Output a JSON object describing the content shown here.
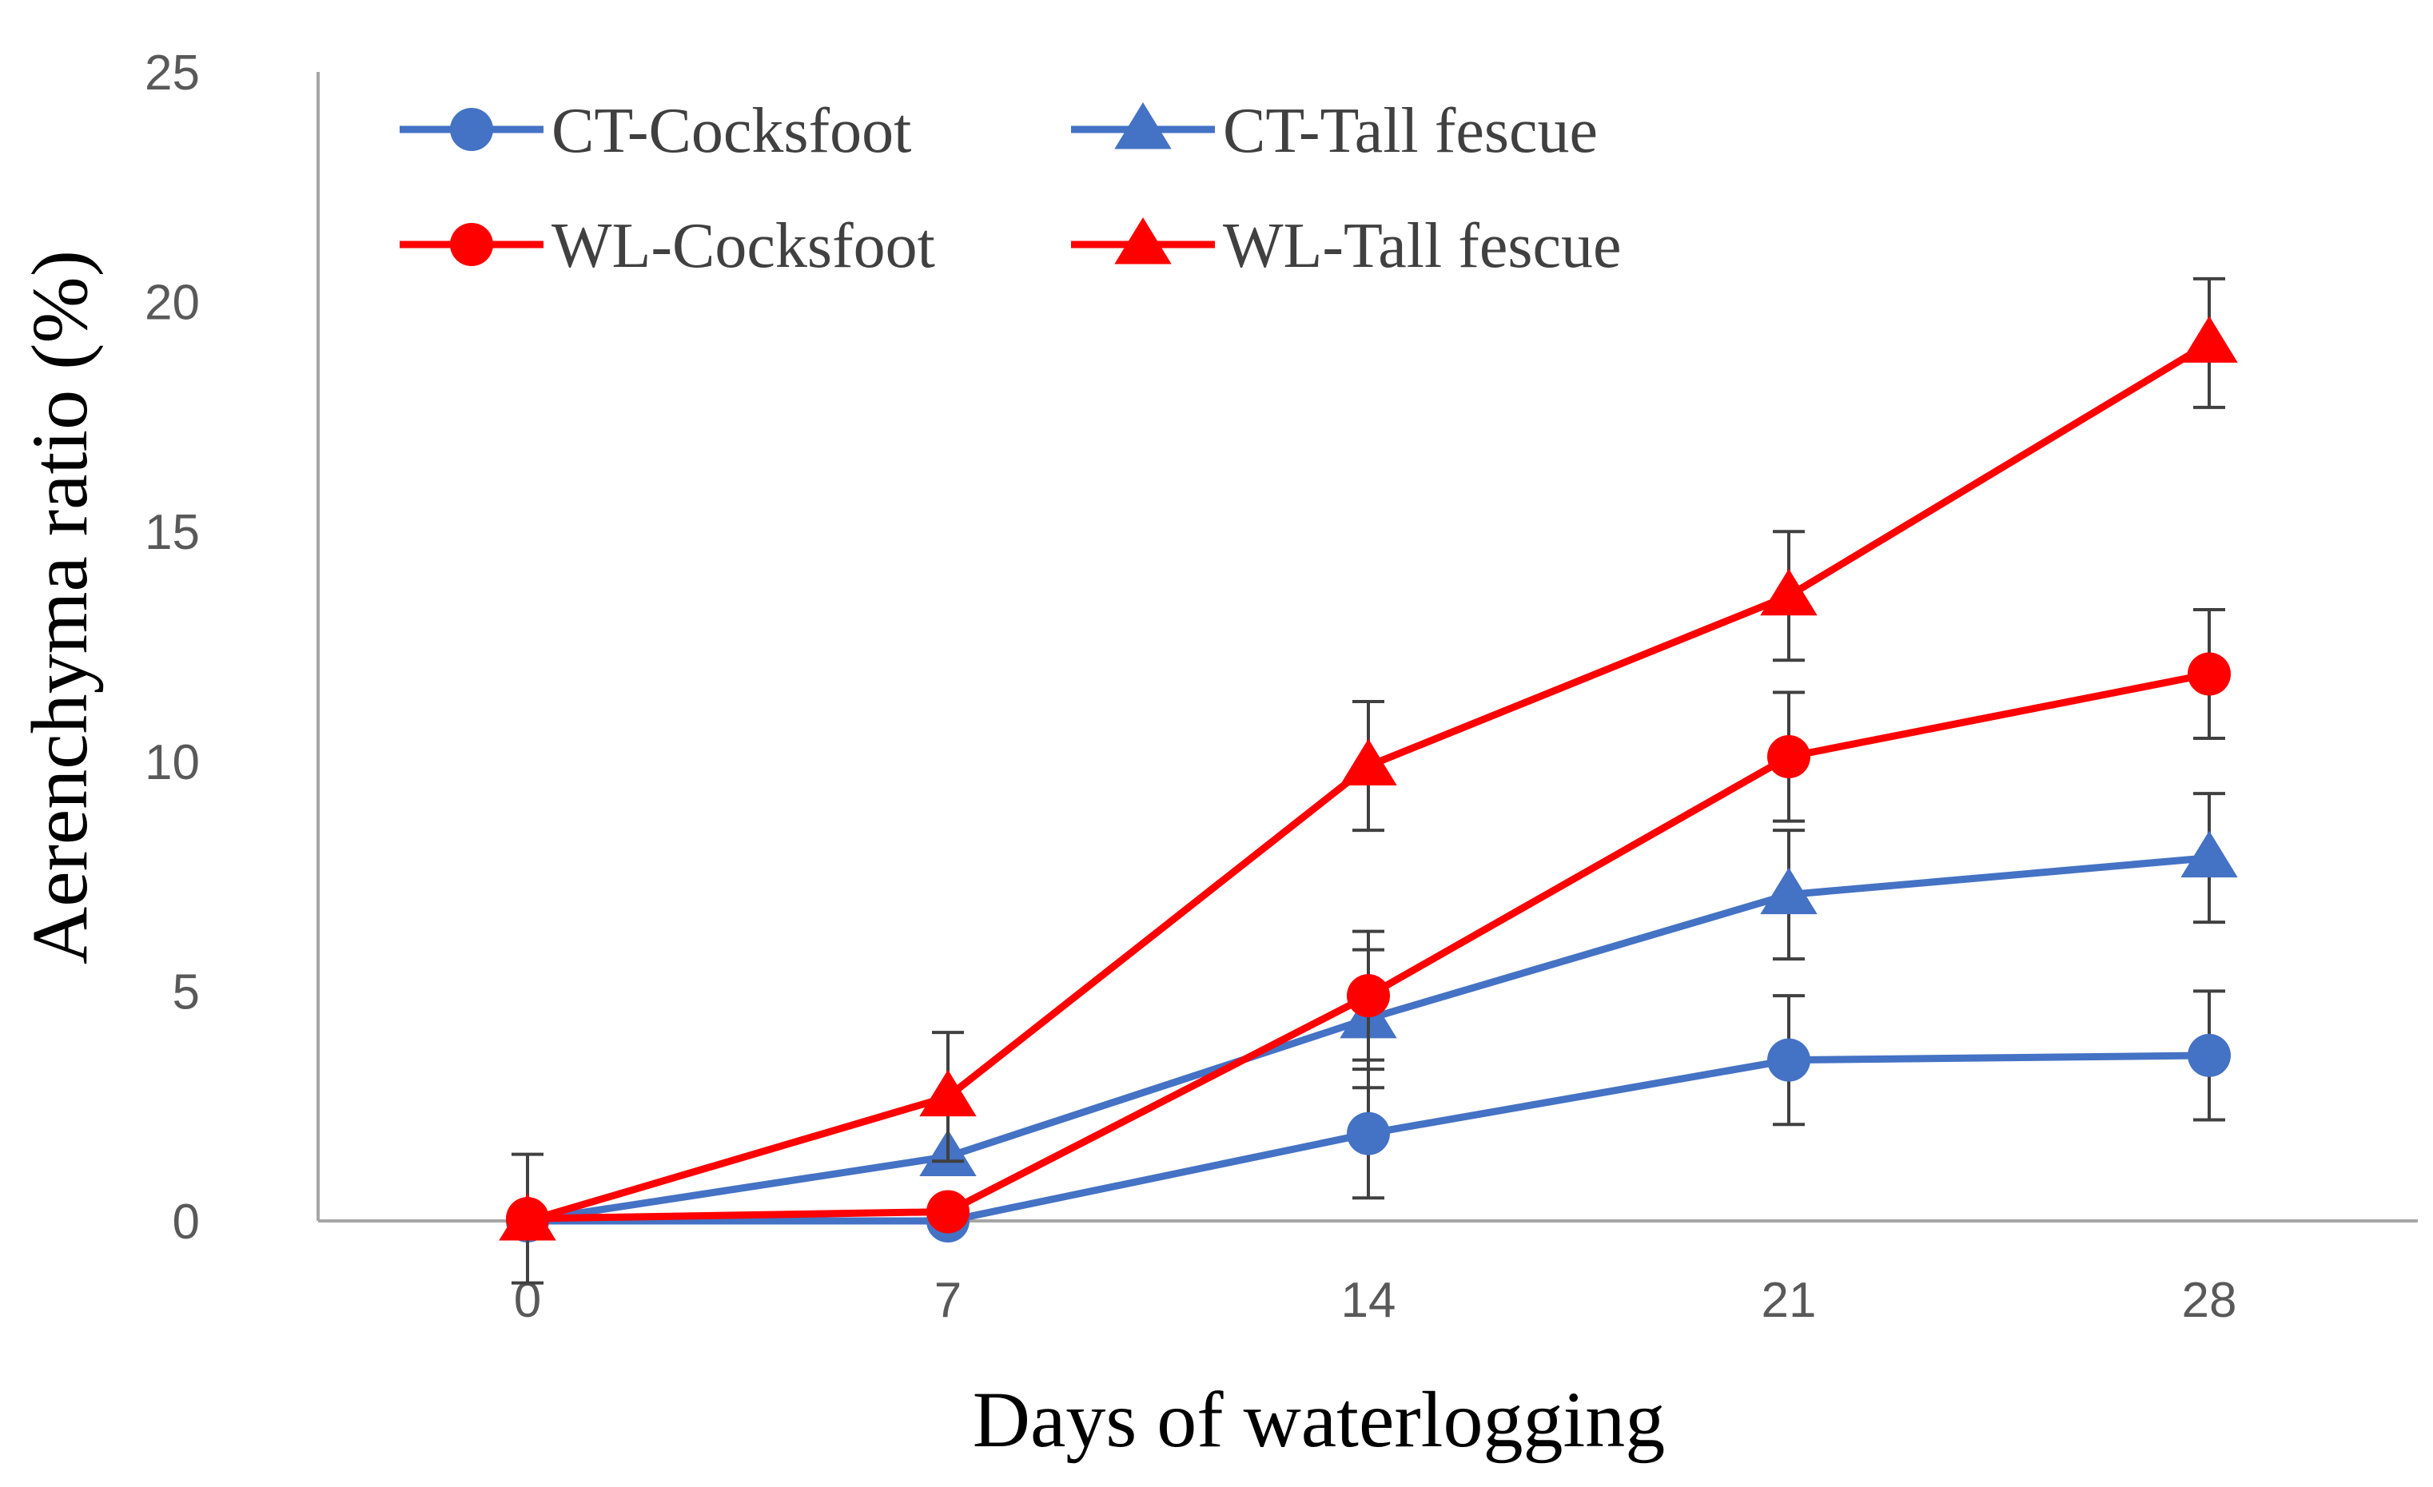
{
  "chart_data": {
    "type": "line",
    "title": "",
    "xlabel": "Days of waterlogging",
    "ylabel": "Aerenchyma ratio (%)",
    "categories": [
      "0",
      "7",
      "14",
      "21",
      "28"
    ],
    "ylim": [
      0,
      25
    ],
    "yticks": [
      "0",
      "5",
      "10",
      "15",
      "20",
      "25"
    ],
    "grid": false,
    "legend_position": "top-left",
    "series": [
      {
        "name": "CT-Cocksfoot",
        "color": "#4472C4",
        "marker": "circle",
        "values": [
          0,
          0,
          1.9,
          3.5,
          3.6
        ],
        "errors": [
          0,
          0,
          1.4,
          1.4,
          1.4
        ]
      },
      {
        "name": "CT-Tall fescue",
        "color": "#4472C4",
        "marker": "triangle",
        "values": [
          0,
          1.4,
          4.4,
          7.1,
          7.9
        ],
        "errors": [
          0,
          0,
          1.5,
          1.4,
          1.4
        ]
      },
      {
        "name": "WL-Cocksfoot",
        "color": "#FF0000",
        "marker": "circle",
        "values": [
          0.05,
          0.2,
          4.9,
          10.1,
          11.9
        ],
        "errors": [
          1.4,
          0,
          1.4,
          1.4,
          1.4
        ]
      },
      {
        "name": "WL-Tall fescue",
        "color": "#FF0000",
        "marker": "triangle",
        "values": [
          0,
          2.7,
          9.9,
          13.6,
          19.1
        ],
        "errors": [
          0,
          1.4,
          1.4,
          1.4,
          1.4
        ]
      }
    ]
  }
}
